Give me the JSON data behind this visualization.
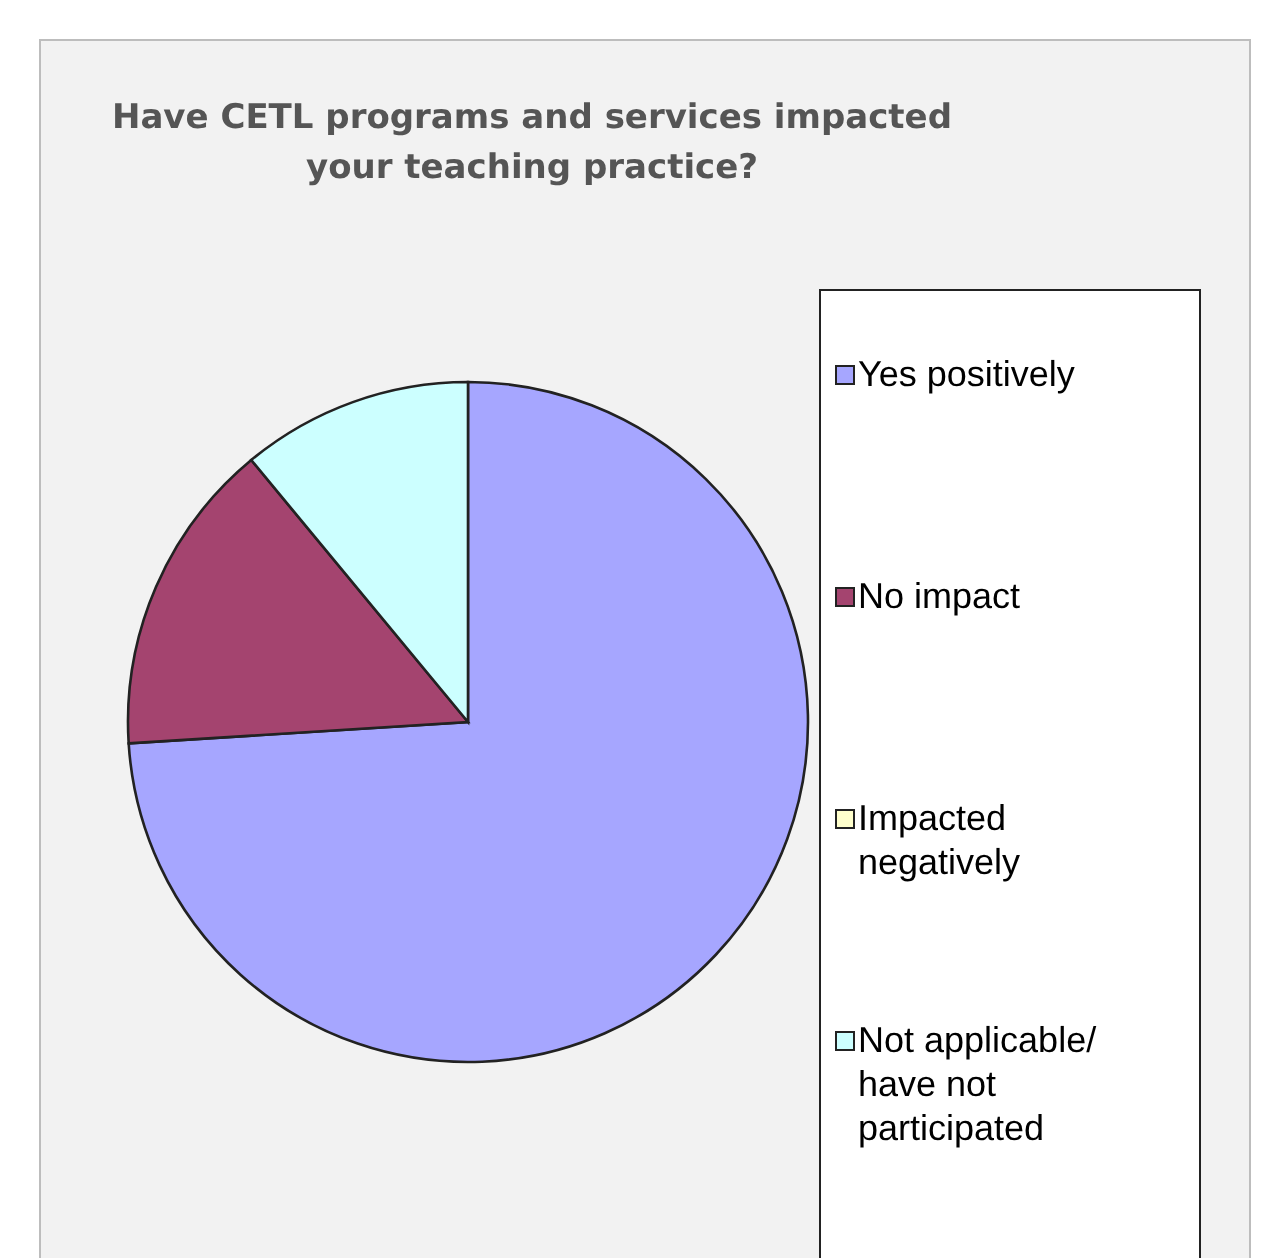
{
  "chart_data": {
    "type": "pie",
    "title": "Have CETL programs and services impacted your teaching practice?",
    "categories": [
      "Yes positively",
      "No impact",
      "Impacted negatively",
      "Not applicable/ have not participated"
    ],
    "values": [
      74,
      15,
      0,
      11
    ],
    "colors": [
      "#a6a6ff",
      "#a4446f",
      "#ffffcc",
      "#ccffff"
    ],
    "legend": "right"
  }
}
